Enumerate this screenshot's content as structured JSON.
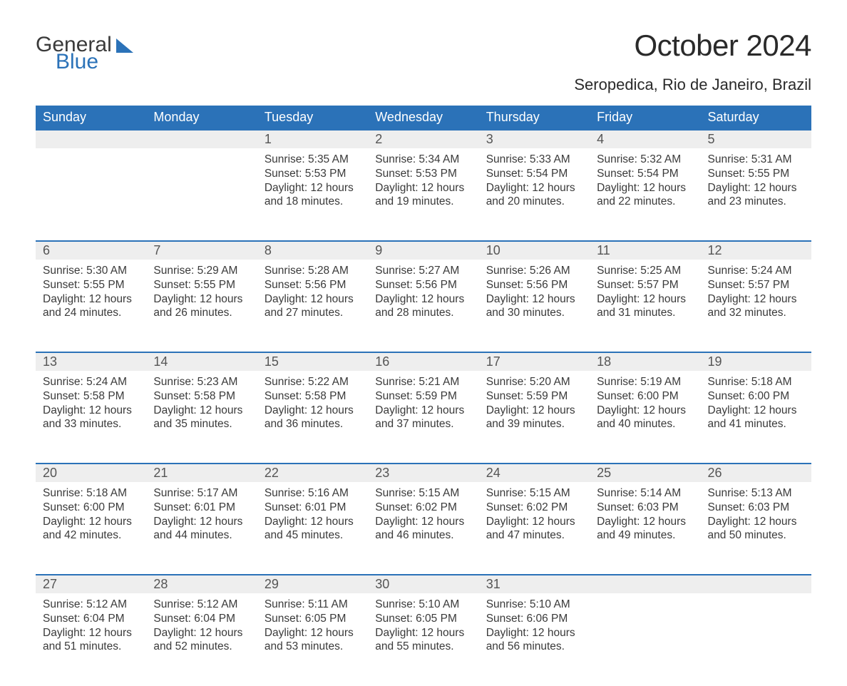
{
  "logo": {
    "text1": "General",
    "text2": "Blue",
    "sail_color": "#2b72b8"
  },
  "title": "October 2024",
  "location": "Seropedica, Rio de Janeiro, Brazil",
  "colors": {
    "header_bg": "#2b72b8",
    "header_fg": "#ffffff",
    "daynum_bg": "#eeeeee",
    "daynum_border": "#2b72b8",
    "body_bg": "#ffffff",
    "text": "#3a3a3a"
  },
  "fonts": {
    "title_size": 42,
    "location_size": 22,
    "dayheader_size": 18,
    "daynum_size": 18,
    "cell_size": 15.5
  },
  "day_headers": [
    "Sunday",
    "Monday",
    "Tuesday",
    "Wednesday",
    "Thursday",
    "Friday",
    "Saturday"
  ],
  "weeks": [
    [
      null,
      null,
      {
        "n": "1",
        "sunrise": "5:35 AM",
        "sunset": "5:53 PM",
        "dl1": "Daylight: 12 hours",
        "dl2": "and 18 minutes."
      },
      {
        "n": "2",
        "sunrise": "5:34 AM",
        "sunset": "5:53 PM",
        "dl1": "Daylight: 12 hours",
        "dl2": "and 19 minutes."
      },
      {
        "n": "3",
        "sunrise": "5:33 AM",
        "sunset": "5:54 PM",
        "dl1": "Daylight: 12 hours",
        "dl2": "and 20 minutes."
      },
      {
        "n": "4",
        "sunrise": "5:32 AM",
        "sunset": "5:54 PM",
        "dl1": "Daylight: 12 hours",
        "dl2": "and 22 minutes."
      },
      {
        "n": "5",
        "sunrise": "5:31 AM",
        "sunset": "5:55 PM",
        "dl1": "Daylight: 12 hours",
        "dl2": "and 23 minutes."
      }
    ],
    [
      {
        "n": "6",
        "sunrise": "5:30 AM",
        "sunset": "5:55 PM",
        "dl1": "Daylight: 12 hours",
        "dl2": "and 24 minutes."
      },
      {
        "n": "7",
        "sunrise": "5:29 AM",
        "sunset": "5:55 PM",
        "dl1": "Daylight: 12 hours",
        "dl2": "and 26 minutes."
      },
      {
        "n": "8",
        "sunrise": "5:28 AM",
        "sunset": "5:56 PM",
        "dl1": "Daylight: 12 hours",
        "dl2": "and 27 minutes."
      },
      {
        "n": "9",
        "sunrise": "5:27 AM",
        "sunset": "5:56 PM",
        "dl1": "Daylight: 12 hours",
        "dl2": "and 28 minutes."
      },
      {
        "n": "10",
        "sunrise": "5:26 AM",
        "sunset": "5:56 PM",
        "dl1": "Daylight: 12 hours",
        "dl2": "and 30 minutes."
      },
      {
        "n": "11",
        "sunrise": "5:25 AM",
        "sunset": "5:57 PM",
        "dl1": "Daylight: 12 hours",
        "dl2": "and 31 minutes."
      },
      {
        "n": "12",
        "sunrise": "5:24 AM",
        "sunset": "5:57 PM",
        "dl1": "Daylight: 12 hours",
        "dl2": "and 32 minutes."
      }
    ],
    [
      {
        "n": "13",
        "sunrise": "5:24 AM",
        "sunset": "5:58 PM",
        "dl1": "Daylight: 12 hours",
        "dl2": "and 33 minutes."
      },
      {
        "n": "14",
        "sunrise": "5:23 AM",
        "sunset": "5:58 PM",
        "dl1": "Daylight: 12 hours",
        "dl2": "and 35 minutes."
      },
      {
        "n": "15",
        "sunrise": "5:22 AM",
        "sunset": "5:58 PM",
        "dl1": "Daylight: 12 hours",
        "dl2": "and 36 minutes."
      },
      {
        "n": "16",
        "sunrise": "5:21 AM",
        "sunset": "5:59 PM",
        "dl1": "Daylight: 12 hours",
        "dl2": "and 37 minutes."
      },
      {
        "n": "17",
        "sunrise": "5:20 AM",
        "sunset": "5:59 PM",
        "dl1": "Daylight: 12 hours",
        "dl2": "and 39 minutes."
      },
      {
        "n": "18",
        "sunrise": "5:19 AM",
        "sunset": "6:00 PM",
        "dl1": "Daylight: 12 hours",
        "dl2": "and 40 minutes."
      },
      {
        "n": "19",
        "sunrise": "5:18 AM",
        "sunset": "6:00 PM",
        "dl1": "Daylight: 12 hours",
        "dl2": "and 41 minutes."
      }
    ],
    [
      {
        "n": "20",
        "sunrise": "5:18 AM",
        "sunset": "6:00 PM",
        "dl1": "Daylight: 12 hours",
        "dl2": "and 42 minutes."
      },
      {
        "n": "21",
        "sunrise": "5:17 AM",
        "sunset": "6:01 PM",
        "dl1": "Daylight: 12 hours",
        "dl2": "and 44 minutes."
      },
      {
        "n": "22",
        "sunrise": "5:16 AM",
        "sunset": "6:01 PM",
        "dl1": "Daylight: 12 hours",
        "dl2": "and 45 minutes."
      },
      {
        "n": "23",
        "sunrise": "5:15 AM",
        "sunset": "6:02 PM",
        "dl1": "Daylight: 12 hours",
        "dl2": "and 46 minutes."
      },
      {
        "n": "24",
        "sunrise": "5:15 AM",
        "sunset": "6:02 PM",
        "dl1": "Daylight: 12 hours",
        "dl2": "and 47 minutes."
      },
      {
        "n": "25",
        "sunrise": "5:14 AM",
        "sunset": "6:03 PM",
        "dl1": "Daylight: 12 hours",
        "dl2": "and 49 minutes."
      },
      {
        "n": "26",
        "sunrise": "5:13 AM",
        "sunset": "6:03 PM",
        "dl1": "Daylight: 12 hours",
        "dl2": "and 50 minutes."
      }
    ],
    [
      {
        "n": "27",
        "sunrise": "5:12 AM",
        "sunset": "6:04 PM",
        "dl1": "Daylight: 12 hours",
        "dl2": "and 51 minutes."
      },
      {
        "n": "28",
        "sunrise": "5:12 AM",
        "sunset": "6:04 PM",
        "dl1": "Daylight: 12 hours",
        "dl2": "and 52 minutes."
      },
      {
        "n": "29",
        "sunrise": "5:11 AM",
        "sunset": "6:05 PM",
        "dl1": "Daylight: 12 hours",
        "dl2": "and 53 minutes."
      },
      {
        "n": "30",
        "sunrise": "5:10 AM",
        "sunset": "6:05 PM",
        "dl1": "Daylight: 12 hours",
        "dl2": "and 55 minutes."
      },
      {
        "n": "31",
        "sunrise": "5:10 AM",
        "sunset": "6:06 PM",
        "dl1": "Daylight: 12 hours",
        "dl2": "and 56 minutes."
      },
      null,
      null
    ]
  ],
  "labels": {
    "sunrise_prefix": "Sunrise: ",
    "sunset_prefix": "Sunset: "
  }
}
